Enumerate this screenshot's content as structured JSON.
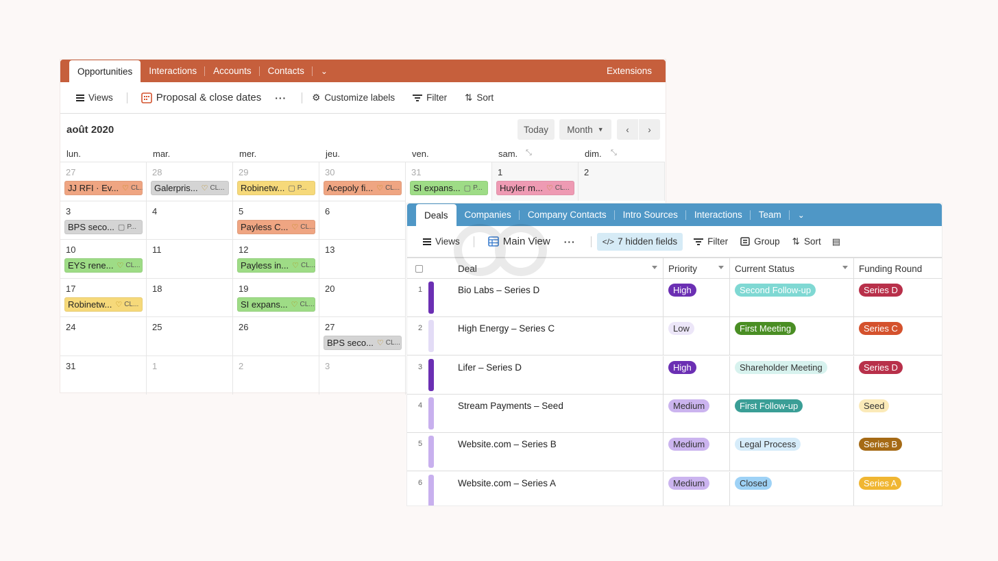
{
  "calendar": {
    "tabs": [
      "Opportunities",
      "Interactions",
      "Accounts",
      "Contacts"
    ],
    "extensions_label": "Extensions",
    "toolbar": {
      "views_label": "Views",
      "view_name": "Proposal & close dates",
      "customize_label": "Customize labels",
      "filter_label": "Filter",
      "sort_label": "Sort"
    },
    "month_title": "août 2020",
    "today_label": "Today",
    "month_label": "Month",
    "weekdays": [
      "lun.",
      "mar.",
      "mer.",
      "jeu.",
      "ven.",
      "sam.",
      "dim."
    ],
    "weeks": [
      [
        "27",
        "28",
        "29",
        "30",
        "31",
        "1",
        "2"
      ],
      [
        "3",
        "4",
        "5",
        "6",
        "",
        "",
        ""
      ],
      [
        "10",
        "11",
        "12",
        "13",
        "",
        "",
        ""
      ],
      [
        "17",
        "18",
        "19",
        "20",
        "",
        "",
        ""
      ],
      [
        "24",
        "25",
        "26",
        "27",
        "",
        "",
        ""
      ],
      [
        "31",
        "1",
        "2",
        "3",
        "",
        "",
        ""
      ]
    ],
    "events": [
      {
        "week": 0,
        "day": 0,
        "label": "JJ RFI · Ev...",
        "meta": "CL...",
        "icon": "heart",
        "color": "#efa582"
      },
      {
        "week": 0,
        "day": 1,
        "label": "Galerpris...",
        "meta": "CL...",
        "icon": "heart",
        "color": "#d4d4d4"
      },
      {
        "week": 0,
        "day": 2,
        "label": "Robinetw...",
        "meta": "P...",
        "icon": "doc",
        "color": "#f6d97a"
      },
      {
        "week": 0,
        "day": 3,
        "label": "Acepoly fi...",
        "meta": "CL...",
        "icon": "heart",
        "color": "#efa582"
      },
      {
        "week": 0,
        "day": 4,
        "label": "SI expans...",
        "meta": "P...",
        "icon": "doc",
        "color": "#9edc86"
      },
      {
        "week": 0,
        "day": 5,
        "label": "Huyler m...",
        "meta": "CL...",
        "icon": "heart",
        "color": "#ee9ab3"
      },
      {
        "week": 1,
        "day": 0,
        "label": "BPS seco...",
        "meta": "P...",
        "icon": "doc",
        "color": "#d4d4d4"
      },
      {
        "week": 1,
        "day": 2,
        "label": "Payless C...",
        "meta": "CL...",
        "icon": "heart",
        "color": "#efa582"
      },
      {
        "week": 2,
        "day": 0,
        "label": "EYS rene...",
        "meta": "CL...",
        "icon": "heart",
        "color": "#9edc86"
      },
      {
        "week": 2,
        "day": 2,
        "label": "Payless in...",
        "meta": "CL...",
        "icon": "heart",
        "color": "#9edc86"
      },
      {
        "week": 3,
        "day": 0,
        "label": "Robinetw...",
        "meta": "CL...",
        "icon": "heart",
        "color": "#f6d97a"
      },
      {
        "week": 3,
        "day": 2,
        "label": "SI expans...",
        "meta": "CL...",
        "icon": "heart",
        "color": "#9edc86"
      },
      {
        "week": 4,
        "day": 3,
        "label": "BPS seco...",
        "meta": "CL...",
        "icon": "heart",
        "color": "#d4d4d4"
      }
    ]
  },
  "deals": {
    "tabs": [
      "Deals",
      "Companies",
      "Company Contacts",
      "Intro Sources",
      "Interactions",
      "Team"
    ],
    "toolbar": {
      "views_label": "Views",
      "view_name": "Main View",
      "hidden_fields_label": "7 hidden fields",
      "filter_label": "Filter",
      "group_label": "Group",
      "sort_label": "Sort"
    },
    "columns": [
      "Deal",
      "Priority",
      "Current Status",
      "Funding Round"
    ],
    "rows": [
      {
        "n": "1",
        "deal": "Bio Labs – Series D",
        "bar": "#6b2fb3",
        "priority": "High",
        "p_bg": "#6b2fb3",
        "p_fg": "#fff",
        "status": "Second Follow-up",
        "s_bg": "#7fd8d3",
        "s_fg": "#fff",
        "round": "Series D",
        "r_bg": "#b8304a",
        "r_fg": "#fff"
      },
      {
        "n": "2",
        "deal": "High Energy – Series C",
        "bar": "#e3dcf6",
        "priority": "Low",
        "p_bg": "#ece6f8",
        "p_fg": "#333",
        "status": "First Meeting",
        "s_bg": "#4a8e24",
        "s_fg": "#fff",
        "round": "Series C",
        "r_bg": "#d4522d",
        "r_fg": "#fff"
      },
      {
        "n": "3",
        "deal": "Lifer – Series D",
        "bar": "#6b2fb3",
        "priority": "High",
        "p_bg": "#6b2fb3",
        "p_fg": "#fff",
        "status": "Shareholder Meeting",
        "s_bg": "#d7f2ee",
        "s_fg": "#333",
        "round": "Series D",
        "r_bg": "#b8304a",
        "r_fg": "#fff"
      },
      {
        "n": "4",
        "deal": "Stream Payments – Seed",
        "bar": "#c8b0ee",
        "priority": "Medium",
        "p_bg": "#cbb4ef",
        "p_fg": "#333",
        "status": "First Follow-up",
        "s_bg": "#3a9e96",
        "s_fg": "#fff",
        "round": "Seed",
        "r_bg": "#fbeab8",
        "r_fg": "#333"
      },
      {
        "n": "5",
        "deal": "Website.com – Series B",
        "bar": "#c8b0ee",
        "priority": "Medium",
        "p_bg": "#cbb4ef",
        "p_fg": "#333",
        "status": "Legal Process",
        "s_bg": "#d6ecfa",
        "s_fg": "#333",
        "round": "Series B",
        "r_bg": "#a56a15",
        "r_fg": "#fff"
      },
      {
        "n": "6",
        "deal": "Website.com – Series A",
        "bar": "#c8b0ee",
        "priority": "Medium",
        "p_bg": "#cbb4ef",
        "p_fg": "#333",
        "status": "Closed",
        "s_bg": "#9ed2f6",
        "s_fg": "#333",
        "round": "Series A",
        "r_bg": "#f0b632",
        "r_fg": "#fff"
      }
    ]
  }
}
